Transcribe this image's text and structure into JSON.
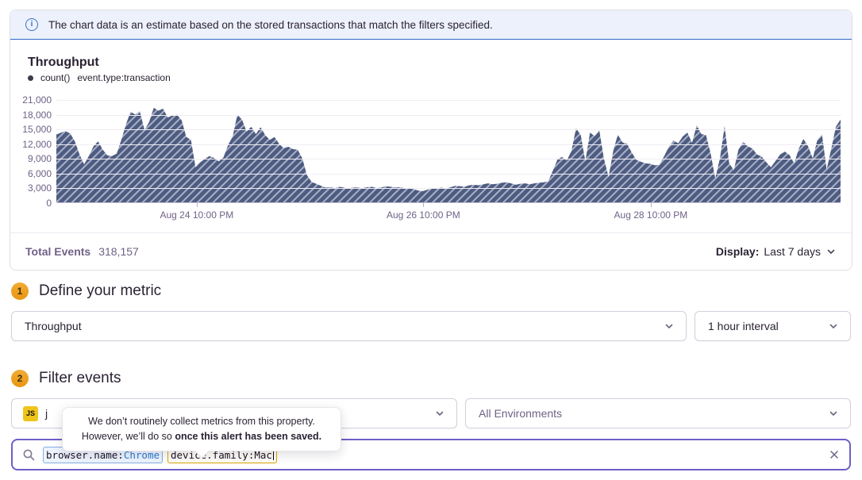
{
  "banner": {
    "text": "The chart data is an estimate based on the stored transactions that match the filters specified."
  },
  "chart": {
    "title": "Throughput",
    "legend_metric": "count()",
    "legend_filter": "event.type:transaction"
  },
  "chart_footer": {
    "total_label": "Total Events",
    "total_value": "318,157",
    "display_label": "Display:",
    "display_value": "Last 7 days"
  },
  "metric_section": {
    "step": "1",
    "title": "Define your metric",
    "metric_value": "Throughput",
    "interval_value": "1 hour interval"
  },
  "filter_section": {
    "step": "2",
    "title": "Filter events",
    "project_badge": "JS",
    "project_visible_text": "j",
    "environment_value": "All Environments"
  },
  "tooltip": {
    "line1": "We don’t routinely collect metrics from this property.",
    "line2_text": "However, we’ll do so ",
    "line2_bold": "once this alert has been saved."
  },
  "search": {
    "tokens": [
      {
        "key": "browser.name:",
        "value": "Chrome",
        "type": "recognized"
      },
      {
        "key": "device.family:",
        "value": "Mac",
        "type": "highlighted"
      }
    ]
  },
  "colors": {
    "accent_purple": "#6C5FC7",
    "banner_blue": "#2F66C8",
    "step_badge_orange": "#EFA12D",
    "js_badge_yellow": "#EFC51A",
    "token_blue_border": "#84AEE3",
    "token_gold_border": "#D9A301"
  },
  "chart_data": {
    "type": "area",
    "title": "Throughput",
    "series_label": "count() event.type:transaction",
    "unit": "transactions per 1 hour interval",
    "grid": true,
    "ylim": [
      0,
      21000
    ],
    "colors": {
      "fill": "#4E5C82",
      "stripe": "#A9B1C6"
    },
    "y_ticks": [
      {
        "label": "0",
        "value": 0
      },
      {
        "label": "3,000",
        "value": 3000
      },
      {
        "label": "6,000",
        "value": 6000
      },
      {
        "label": "9,000",
        "value": 9000
      },
      {
        "label": "12,000",
        "value": 12000
      },
      {
        "label": "15,000",
        "value": 15000
      },
      {
        "label": "18,000",
        "value": 18000
      },
      {
        "label": "21,000",
        "value": 21000
      }
    ],
    "x_ticks": [
      {
        "label": "Aug 24 10:00 PM",
        "pos": 0.179
      },
      {
        "label": "Aug 26 10:00 PM",
        "pos": 0.468
      },
      {
        "label": "Aug 28 10:00 PM",
        "pos": 0.758
      }
    ],
    "values": [
      13900,
      14300,
      14600,
      14100,
      12500,
      9800,
      7800,
      9500,
      11500,
      12500,
      10800,
      9600,
      9500,
      10000,
      12800,
      16000,
      18600,
      18000,
      18700,
      14800,
      16500,
      19400,
      18800,
      19200,
      17400,
      17800,
      18000,
      16800,
      13400,
      12800,
      7200,
      8200,
      8900,
      9500,
      9100,
      8400,
      9200,
      11700,
      13500,
      18000,
      17000,
      14500,
      15500,
      14000,
      15400,
      13800,
      12800,
      13400,
      12000,
      11100,
      11400,
      10900,
      10800,
      9000,
      5600,
      4200,
      3800,
      3400,
      3000,
      3100,
      2900,
      3200,
      3000,
      2800,
      3100,
      3000,
      2900,
      3100,
      3200,
      2900,
      3000,
      3300,
      3200,
      3000,
      3100,
      2900,
      2800,
      2700,
      2400,
      2300,
      2600,
      2800,
      2900,
      3000,
      2800,
      3100,
      3400,
      3300,
      3200,
      3500,
      3600,
      3500,
      3700,
      3900,
      3700,
      3800,
      4000,
      4100,
      3900,
      3600,
      3800,
      3900,
      3700,
      3900,
      4000,
      4100,
      4300,
      6500,
      8800,
      9300,
      8600,
      10500,
      15200,
      13800,
      8400,
      14300,
      13600,
      14800,
      9000,
      5200,
      10500,
      13900,
      12300,
      12000,
      10200,
      8700,
      8300,
      8000,
      7900,
      7600,
      7700,
      9500,
      11400,
      12700,
      12100,
      13500,
      14300,
      12200,
      15800,
      14000,
      13800,
      10000,
      4900,
      9000,
      15600,
      8000,
      6600,
      10800,
      12400,
      11500,
      11000,
      9800,
      9400,
      8200,
      7200,
      8500,
      9800,
      10400,
      9700,
      8000,
      11000,
      13000,
      11500,
      9000,
      12800,
      13900,
      6700,
      11000,
      15500,
      17000
    ]
  }
}
